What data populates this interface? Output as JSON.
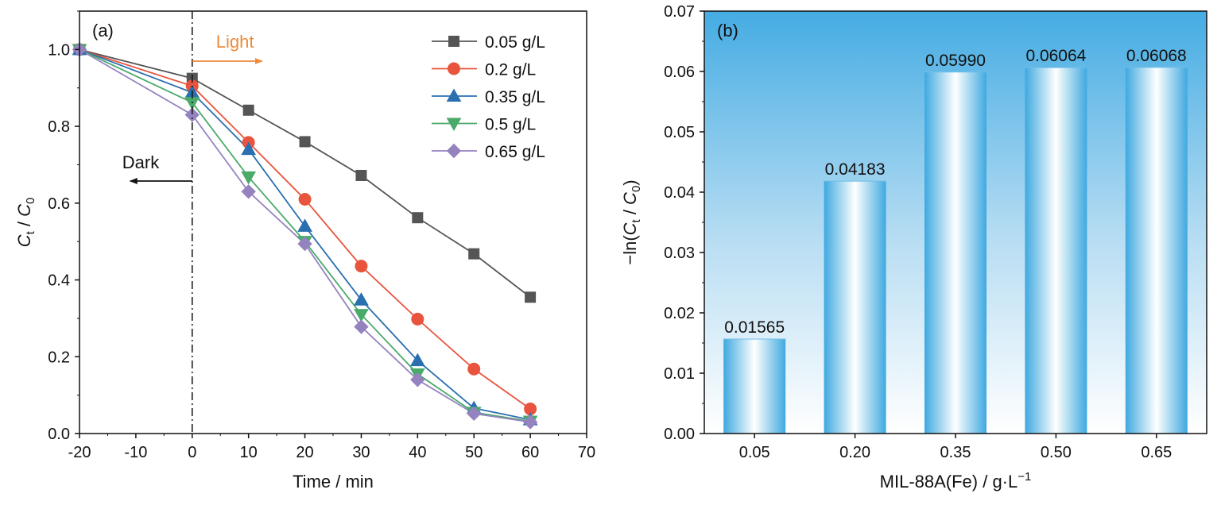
{
  "chart_data": [
    {
      "type": "line",
      "panel_label": "(a)",
      "xlabel": "Time / min",
      "ylabel_main": "C",
      "ylabel_sub1": "t",
      "ylabel_mid": " / ",
      "ylabel_main2": "C",
      "ylabel_sub2": "0",
      "xlim": [
        -20,
        70
      ],
      "ylim": [
        0.0,
        1.1
      ],
      "xticks": [
        "-20",
        "-10",
        "0",
        "10",
        "20",
        "30",
        "40",
        "50",
        "60",
        "70"
      ],
      "yticks": [
        "0.0",
        "0.2",
        "0.4",
        "0.6",
        "0.8",
        "1.0"
      ],
      "annotations": {
        "light": "Light",
        "dark": "Dark"
      },
      "legend_position": "top-right",
      "x": [
        -20,
        0,
        10,
        20,
        30,
        40,
        50,
        60
      ],
      "series": [
        {
          "name": "0.05 g/L",
          "marker": "square",
          "color": "#555555",
          "values": [
            1.0,
            0.925,
            0.842,
            0.76,
            0.672,
            0.562,
            0.468,
            0.355
          ]
        },
        {
          "name": "0.2 g/L",
          "marker": "circle",
          "color": "#e8543e",
          "values": [
            1.0,
            0.905,
            0.758,
            0.61,
            0.436,
            0.298,
            0.168,
            0.064
          ]
        },
        {
          "name": "0.35 g/L",
          "marker": "triangle-up",
          "color": "#2a6fb0",
          "values": [
            1.0,
            0.888,
            0.74,
            0.54,
            0.348,
            0.19,
            0.066,
            0.036
          ]
        },
        {
          "name": "0.5 g/L",
          "marker": "triangle-down",
          "color": "#4aaa6a",
          "values": [
            1.0,
            0.862,
            0.668,
            0.5,
            0.31,
            0.155,
            0.055,
            0.032
          ]
        },
        {
          "name": "0.65 g/L",
          "marker": "diamond",
          "color": "#9583c0",
          "values": [
            1.0,
            0.83,
            0.63,
            0.494,
            0.278,
            0.14,
            0.052,
            0.03
          ]
        }
      ]
    },
    {
      "type": "bar",
      "panel_label": "(b)",
      "xlabel_prefix": "MIL-88A(Fe) / g·L",
      "xlabel_sup": "−1",
      "ylabel_prefix": "−ln(",
      "ylabel_main": "C",
      "ylabel_sub1": "t",
      "ylabel_mid": " / ",
      "ylabel_main2": "C",
      "ylabel_sub2": "0",
      "ylabel_suffix": ")",
      "ylim": [
        0.0,
        0.07
      ],
      "yticks": [
        "0.00",
        "0.01",
        "0.02",
        "0.03",
        "0.04",
        "0.05",
        "0.06",
        "0.07"
      ],
      "categories": [
        "0.05",
        "0.20",
        "0.35",
        "0.50",
        "0.65"
      ],
      "values": [
        0.01565,
        0.04183,
        0.0599,
        0.06064,
        0.06068
      ],
      "value_labels": [
        "0.01565",
        "0.04183",
        "0.05990",
        "0.06064",
        "0.06068"
      ],
      "colors": {
        "bar": "#3fa9e0",
        "background_top": "#45ace3"
      }
    }
  ]
}
